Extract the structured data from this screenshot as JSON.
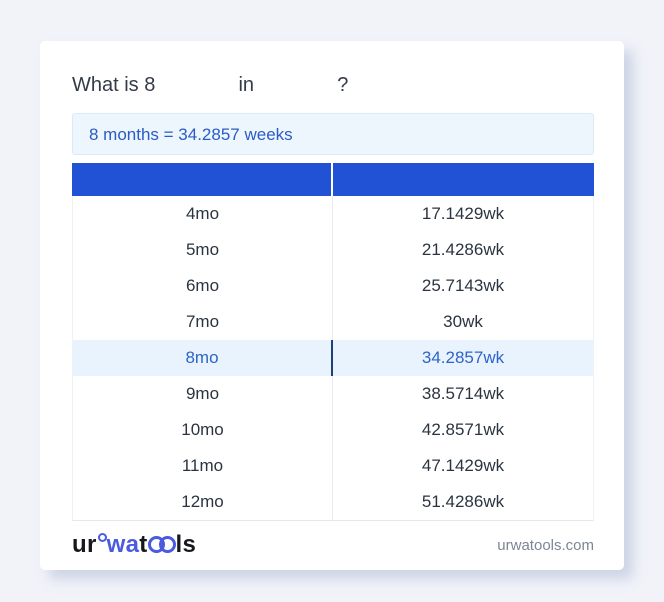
{
  "question": {
    "prefix": "What is 8",
    "connector": "in",
    "suffix": "?"
  },
  "answer": {
    "text": "8 months = 34.2857 weeks"
  },
  "table": {
    "headers": [
      "",
      ""
    ],
    "rows": [
      {
        "months": "4mo",
        "weeks": "17.1429wk",
        "highlighted": false
      },
      {
        "months": "5mo",
        "weeks": "21.4286wk",
        "highlighted": false
      },
      {
        "months": "6mo",
        "weeks": "25.7143wk",
        "highlighted": false
      },
      {
        "months": "7mo",
        "weeks": "30wk",
        "highlighted": false
      },
      {
        "months": "8mo",
        "weeks": "34.2857wk",
        "highlighted": true
      },
      {
        "months": "9mo",
        "weeks": "38.5714wk",
        "highlighted": false
      },
      {
        "months": "10mo",
        "weeks": "42.8571wk",
        "highlighted": false
      },
      {
        "months": "11mo",
        "weeks": "47.1429wk",
        "highlighted": false
      },
      {
        "months": "12mo",
        "weeks": "51.4286wk",
        "highlighted": false
      }
    ]
  },
  "logo": {
    "part1": "ur",
    "part2": "wa",
    "part3": "t",
    "part4": "ls",
    "oo_icon": "interlocked-rings"
  },
  "footer": {
    "domain": "urwatools.com"
  },
  "colors": {
    "header_blue": "#2151d5",
    "highlight_bg": "#e9f3fe",
    "highlight_text": "#2e64c8",
    "answer_bg": "#edf5fd",
    "answer_text": "#2a5cc5",
    "logo_blue": "#4a5be0",
    "page_bg": "#f1f3f9"
  }
}
